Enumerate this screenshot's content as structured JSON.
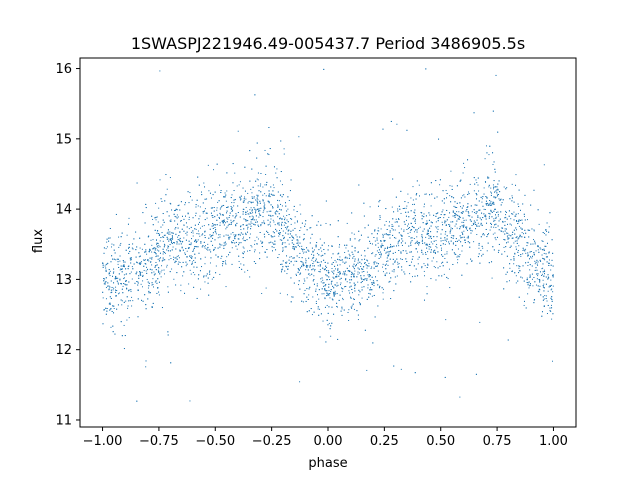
{
  "chart_data": {
    "type": "scatter",
    "title": "1SWASPJ221946.49-005437.7 Period 3486905.5s",
    "xlabel": "phase",
    "ylabel": "flux",
    "xlim": [
      -1.1,
      1.1
    ],
    "ylim": [
      10.9,
      16.15
    ],
    "grid": false,
    "legend": "none",
    "marker_color": "#1f77b4",
    "x_ticks": [
      -1.0,
      -0.75,
      -0.5,
      -0.25,
      0.0,
      0.25,
      0.5,
      0.75,
      1.0
    ],
    "x_tick_labels": [
      "−1.00",
      "−0.75",
      "−0.50",
      "−0.25",
      "0.00",
      "0.25",
      "0.50",
      "0.75",
      "1.00"
    ],
    "y_ticks": [
      11,
      12,
      13,
      14,
      15,
      16
    ],
    "y_tick_labels": [
      "11",
      "12",
      "13",
      "14",
      "15",
      "16"
    ],
    "series": [
      {
        "phase_domain": [
          -1.0,
          1.0
        ],
        "trend_points": [
          [
            0.0,
            13.0
          ],
          [
            0.05,
            12.95
          ],
          [
            0.1,
            13.05
          ],
          [
            0.15,
            13.1
          ],
          [
            0.2,
            13.2
          ],
          [
            0.25,
            13.4
          ],
          [
            0.3,
            13.55
          ],
          [
            0.35,
            13.6
          ],
          [
            0.4,
            13.62
          ],
          [
            0.45,
            13.65
          ],
          [
            0.5,
            13.7
          ],
          [
            0.55,
            13.75
          ],
          [
            0.6,
            13.8
          ],
          [
            0.65,
            13.85
          ],
          [
            0.7,
            13.95
          ],
          [
            0.75,
            14.0
          ],
          [
            0.8,
            13.75
          ],
          [
            0.85,
            13.45
          ],
          [
            0.9,
            13.25
          ],
          [
            0.95,
            13.1
          ],
          [
            1.0,
            13.0
          ]
        ]
      }
    ]
  }
}
